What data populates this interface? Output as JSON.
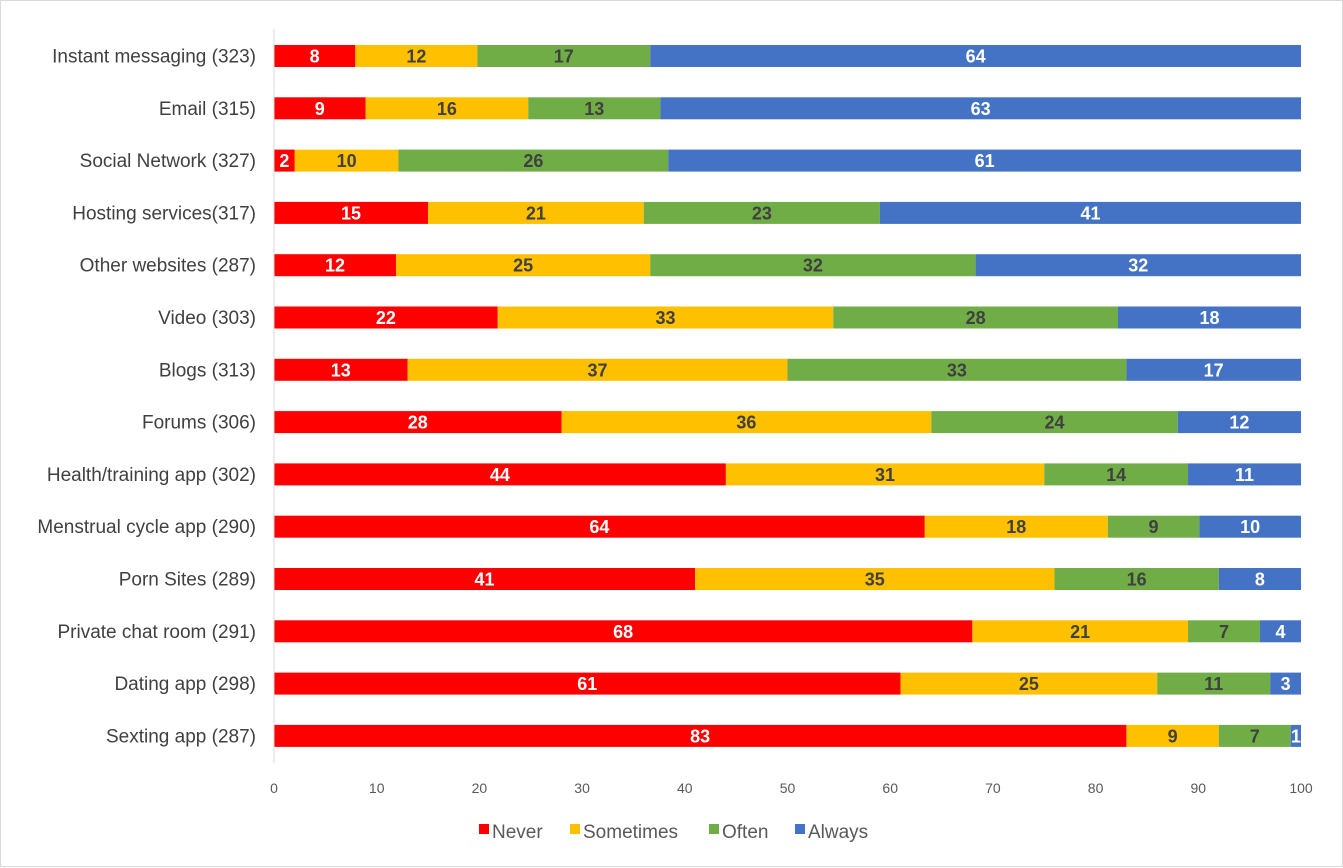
{
  "chart_data": {
    "type": "bar",
    "orientation": "horizontal",
    "stacked": true,
    "title": "",
    "xlabel": "",
    "ylabel": "",
    "xlim": [
      0,
      100
    ],
    "xticks": [
      0,
      10,
      20,
      30,
      40,
      50,
      60,
      70,
      80,
      90,
      100
    ],
    "grid": false,
    "legend_position": "bottom",
    "categories": [
      "Instant messaging (323)",
      "Email (315)",
      "Social Network (327)",
      "Hosting services(317)",
      "Other websites (287)",
      "Video (303)",
      "Blogs (313)",
      "Forums (306)",
      "Health/training app (302)",
      "Menstrual cycle app (290)",
      "Porn Sites (289)",
      "Private chat room (291)",
      "Dating app (298)",
      "Sexting app (287)"
    ],
    "series": [
      {
        "name": "Never",
        "color": "#FF0000",
        "label_color": "#FFFFFF",
        "values": [
          8,
          9,
          2,
          15,
          12,
          22,
          13,
          28,
          44,
          64,
          41,
          68,
          61,
          83
        ]
      },
      {
        "name": "Sometimes",
        "color": "#FFC000",
        "label_color": "#404040",
        "values": [
          12,
          16,
          10,
          21,
          25,
          33,
          37,
          36,
          31,
          18,
          35,
          21,
          25,
          9
        ]
      },
      {
        "name": "Often",
        "color": "#70AD47",
        "label_color": "#404040",
        "values": [
          17,
          13,
          26,
          23,
          32,
          28,
          33,
          24,
          14,
          9,
          16,
          7,
          11,
          7
        ]
      },
      {
        "name": "Always",
        "color": "#4472C4",
        "label_color": "#FFFFFF",
        "values": [
          64,
          63,
          61,
          41,
          32,
          18,
          17,
          12,
          11,
          10,
          8,
          4,
          3,
          1
        ]
      }
    ]
  }
}
